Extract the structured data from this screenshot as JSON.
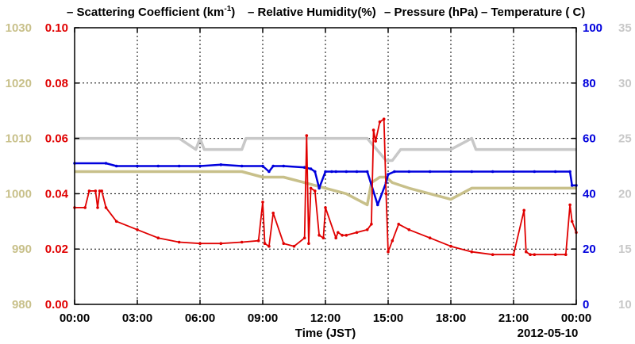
{
  "colors": {
    "scattering": "#e00000",
    "humidity": "#0000dd",
    "pressure": "#c8c08a",
    "temperature": "#c8c8c8",
    "axis": "#000000"
  },
  "chart_data": {
    "type": "line",
    "xlabel": "Time (JST)",
    "date_label": "2012-05-10",
    "x_tick_labels": [
      "00:00",
      "03:00",
      "06:00",
      "09:00",
      "12:00",
      "15:00",
      "18:00",
      "21:00",
      "00:00"
    ],
    "x_range_hours": [
      0,
      24
    ],
    "grid": true,
    "legend_position": "top",
    "legend": {
      "scattering_pre": "– Scattering Coefficient (km",
      "scattering_sup": "-1",
      "scattering_post": ")",
      "humidity": "– Relative Humidity(%)",
      "pressure": "– Pressure (hPa)",
      "temperature": "– Temperature (",
      "temperature_unit": "C)"
    },
    "axes": {
      "scattering": {
        "side": "left-inner",
        "range": [
          0,
          0.1
        ],
        "ticks": [
          "0.00",
          "0.02",
          "0.04",
          "0.06",
          "0.08",
          "0.10"
        ],
        "tick_values": [
          0,
          0.02,
          0.04,
          0.06,
          0.08,
          0.1
        ]
      },
      "pressure": {
        "side": "left-outer",
        "range": [
          980,
          1030
        ],
        "ticks": [
          "980",
          "990",
          "1000",
          "1010",
          "1020",
          "1030"
        ],
        "tick_values": [
          980,
          990,
          1000,
          1010,
          1020,
          1030
        ]
      },
      "humidity": {
        "side": "right-inner",
        "range": [
          0,
          100
        ],
        "ticks": [
          "0",
          "20",
          "40",
          "60",
          "80",
          "100"
        ],
        "tick_values": [
          0,
          20,
          40,
          60,
          80,
          100
        ]
      },
      "temperature": {
        "side": "right-outer",
        "range": [
          10,
          35
        ],
        "ticks": [
          "10",
          "15",
          "20",
          "25",
          "30",
          "35"
        ],
        "tick_values": [
          10,
          15,
          20,
          25,
          30,
          35
        ]
      }
    },
    "series": [
      {
        "name": "Scattering Coefficient",
        "axis": "scattering",
        "x": [
          0,
          0.5,
          0.7,
          1.0,
          1.1,
          1.2,
          1.3,
          1.5,
          2,
          3,
          4,
          5,
          6,
          7,
          8,
          8.8,
          9.0,
          9.1,
          9.3,
          9.5,
          10,
          10.5,
          11.0,
          11.1,
          11.2,
          11.3,
          11.5,
          11.7,
          11.9,
          12.0,
          12.5,
          12.6,
          12.8,
          13.0,
          13.5,
          14.0,
          14.2,
          14.3,
          14.4,
          14.6,
          14.8,
          14.9,
          15.0,
          15.2,
          15.5,
          16,
          17,
          18,
          19,
          20,
          21,
          21.5,
          21.6,
          21.8,
          22,
          23,
          23.5,
          23.7,
          23.8,
          24
        ],
        "y": [
          0.035,
          0.035,
          0.041,
          0.041,
          0.035,
          0.041,
          0.041,
          0.035,
          0.03,
          0.027,
          0.024,
          0.0225,
          0.022,
          0.022,
          0.0225,
          0.023,
          0.037,
          0.022,
          0.021,
          0.033,
          0.022,
          0.021,
          0.024,
          0.061,
          0.022,
          0.042,
          0.041,
          0.025,
          0.024,
          0.035,
          0.024,
          0.026,
          0.025,
          0.025,
          0.026,
          0.027,
          0.029,
          0.063,
          0.059,
          0.066,
          0.067,
          0.04,
          0.019,
          0.023,
          0.029,
          0.027,
          0.024,
          0.021,
          0.019,
          0.018,
          0.018,
          0.034,
          0.019,
          0.018,
          0.018,
          0.018,
          0.018,
          0.036,
          0.03,
          0.026
        ]
      },
      {
        "name": "Relative Humidity",
        "axis": "humidity",
        "x": [
          0,
          1.5,
          2,
          3,
          4,
          5,
          6,
          7,
          8,
          9,
          9.3,
          9.5,
          10,
          11,
          11.3,
          11.5,
          11.7,
          12,
          12.3,
          12.5,
          13,
          13.5,
          14,
          14.5,
          14.9,
          15,
          15.3,
          16,
          17,
          18,
          19,
          20,
          21,
          22,
          23,
          23.7,
          23.8,
          24
        ],
        "y": [
          51,
          51,
          50,
          50,
          50,
          50,
          50,
          50.5,
          50,
          50,
          48,
          50,
          50,
          49.5,
          49,
          48,
          42,
          48,
          48,
          48,
          48,
          48,
          48,
          36,
          44,
          47,
          48,
          48,
          48,
          48,
          48,
          48,
          48,
          48,
          48,
          48,
          43,
          43
        ]
      },
      {
        "name": "Pressure",
        "axis": "pressure",
        "x": [
          0,
          2,
          3,
          4,
          5,
          6,
          7,
          8,
          9,
          10,
          11,
          12,
          13,
          13.5,
          14,
          14.2,
          14.6,
          14.9,
          15.2,
          16,
          17,
          18,
          19,
          20,
          21,
          22,
          23,
          24
        ],
        "y": [
          1004,
          1004,
          1004,
          1004,
          1004,
          1004,
          1004,
          1004,
          1003,
          1003,
          1002,
          1001,
          1000,
          999,
          998,
          1002,
          1003,
          1003,
          1002,
          1001,
          1000,
          999,
          1001,
          1001,
          1001,
          1001,
          1001,
          1001
        ]
      },
      {
        "name": "Temperature",
        "axis": "temperature",
        "x": [
          0,
          1,
          2,
          3,
          4,
          5,
          5.8,
          6.0,
          6.2,
          7,
          8,
          8.2,
          9,
          10,
          11,
          12,
          13,
          14,
          14.9,
          15.2,
          15.6,
          16,
          17,
          18,
          19,
          19.2,
          20,
          21,
          22,
          23,
          24
        ],
        "y": [
          25,
          25,
          25,
          25,
          25,
          25,
          24,
          25,
          24,
          24,
          24,
          25,
          25,
          25,
          25,
          25,
          25,
          25,
          23,
          23,
          24,
          24,
          24,
          24,
          25,
          24,
          24,
          24,
          24,
          24,
          24
        ]
      }
    ]
  }
}
